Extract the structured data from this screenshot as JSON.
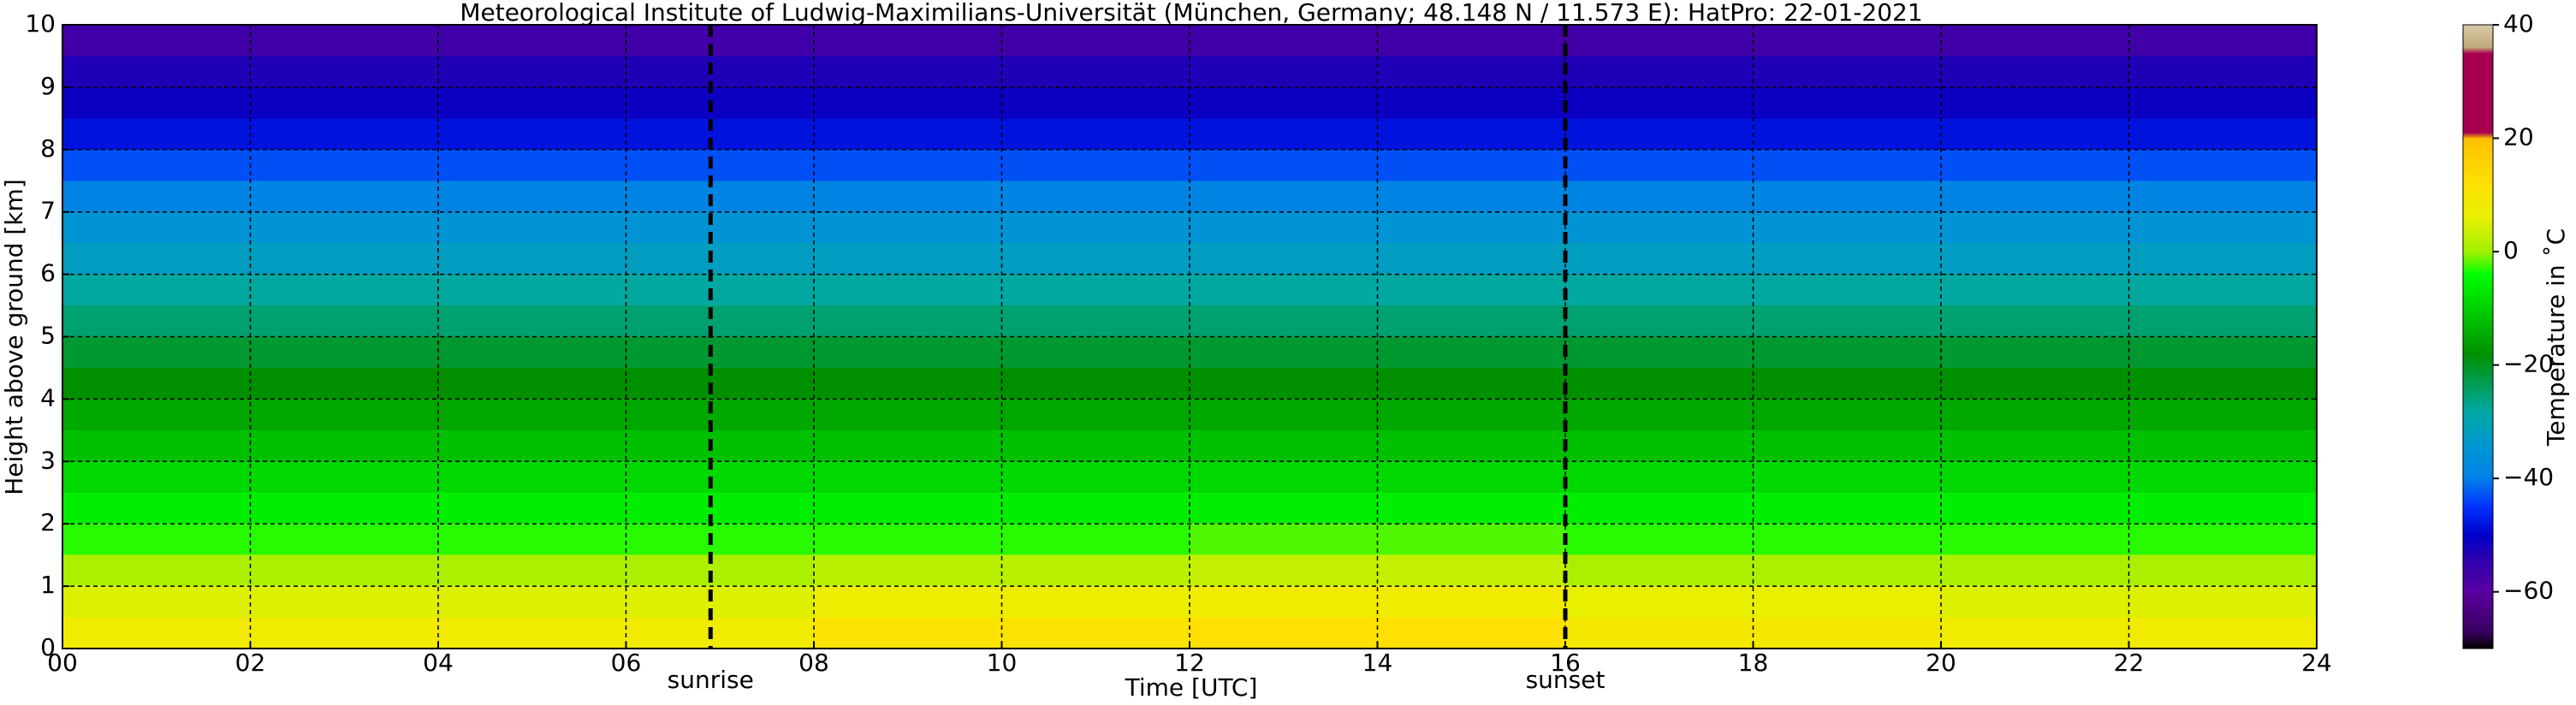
{
  "chart_data": {
    "type": "heatmap",
    "title": "Meteorological Institute of Ludwig-Maximilians-Universität (München, Germany; 48.148 N / 11.573 E):    HatPro: 22-01-2021",
    "x_label": "Time [UTC]",
    "y_label": "Height above ground [km]",
    "colorbar_label": "Temperature in ˚C",
    "x_edges": [
      0,
      4,
      8,
      12,
      16,
      20,
      24
    ],
    "y_edges": [
      0,
      0.5,
      1,
      1.5,
      2,
      2.5,
      3,
      3.5,
      4,
      4.5,
      5,
      5.5,
      6,
      6.5,
      7,
      7.5,
      8,
      8.5,
      9,
      9.5,
      10
    ],
    "values": [
      [
        8,
        8,
        11,
        12,
        9,
        8
      ],
      [
        5,
        5,
        7,
        8,
        6,
        5
      ],
      [
        1,
        1,
        2,
        3,
        1,
        1
      ],
      [
        -3,
        -3,
        -3,
        -2,
        -3,
        -3
      ],
      [
        -6,
        -6,
        -6,
        -6,
        -6,
        -6
      ],
      [
        -9,
        -9,
        -9,
        -9,
        -9,
        -9
      ],
      [
        -12,
        -12,
        -12,
        -12,
        -12,
        -12
      ],
      [
        -15,
        -15,
        -15,
        -15,
        -15,
        -15
      ],
      [
        -18,
        -18,
        -18,
        -18,
        -18,
        -18
      ],
      [
        -21,
        -21,
        -21,
        -21,
        -21,
        -21
      ],
      [
        -25,
        -25,
        -25,
        -25,
        -25,
        -25
      ],
      [
        -28,
        -28,
        -28,
        -28,
        -28,
        -28
      ],
      [
        -32,
        -32,
        -32,
        -32,
        -32,
        -32
      ],
      [
        -35,
        -35,
        -35,
        -35,
        -35,
        -35
      ],
      [
        -39,
        -39,
        -39,
        -39,
        -39,
        -39
      ],
      [
        -43,
        -43,
        -43,
        -43,
        -43,
        -43
      ],
      [
        -48,
        -48,
        -48,
        -48,
        -48,
        -48
      ],
      [
        -51,
        -51,
        -51,
        -51,
        -51,
        -51
      ],
      [
        -53,
        -53,
        -53,
        -53,
        -53,
        -53
      ],
      [
        -57,
        -57,
        -57,
        -57,
        -57,
        -57
      ]
    ],
    "xlim": [
      0,
      24
    ],
    "xticks": [
      {
        "value": 0,
        "label": "00"
      },
      {
        "value": 2,
        "label": "02"
      },
      {
        "value": 4,
        "label": "04"
      },
      {
        "value": 6,
        "label": "06"
      },
      {
        "value": 8,
        "label": "08"
      },
      {
        "value": 10,
        "label": "10"
      },
      {
        "value": 12,
        "label": "12"
      },
      {
        "value": 14,
        "label": "14"
      },
      {
        "value": 16,
        "label": "16"
      },
      {
        "value": 18,
        "label": "18"
      },
      {
        "value": 20,
        "label": "20"
      },
      {
        "value": 22,
        "label": "22"
      },
      {
        "value": 24,
        "label": "24"
      }
    ],
    "ylim": [
      0,
      10
    ],
    "yticks": [
      0,
      1,
      2,
      3,
      4,
      5,
      6,
      7,
      8,
      9,
      10
    ],
    "clim": [
      -70,
      40
    ],
    "cticks": [
      {
        "value": -60,
        "label": "−60"
      },
      {
        "value": -40,
        "label": "−40"
      },
      {
        "value": -20,
        "label": "−20"
      },
      0,
      20,
      40
    ],
    "colorscale": [
      {
        "value": -70,
        "color": "#000000"
      },
      {
        "value": -67,
        "color": "#3a0060"
      },
      {
        "value": -60,
        "color": "#5a00a0"
      },
      {
        "value": -54,
        "color": "#2a00b0"
      },
      {
        "value": -50,
        "color": "#0000c8"
      },
      {
        "value": -45,
        "color": "#0030ff"
      },
      {
        "value": -40,
        "color": "#0080e8"
      },
      {
        "value": -34,
        "color": "#0098d0"
      },
      {
        "value": -28,
        "color": "#00a8a0"
      },
      {
        "value": -22,
        "color": "#009a40"
      },
      {
        "value": -18,
        "color": "#009000"
      },
      {
        "value": -10,
        "color": "#00d000"
      },
      {
        "value": -4,
        "color": "#00ff00"
      },
      {
        "value": 0,
        "color": "#a0f000"
      },
      {
        "value": 6,
        "color": "#e8f000"
      },
      {
        "value": 12,
        "color": "#ffe000"
      },
      {
        "value": 20,
        "color": "#ffc000"
      },
      {
        "value": 21,
        "color": "#a8004f"
      },
      {
        "value": 35,
        "color": "#a8004f"
      },
      {
        "value": 36,
        "color": "#c0a878"
      },
      {
        "value": 40,
        "color": "#d8cca8"
      }
    ],
    "annotations": [
      {
        "x": 6.9,
        "label": "sunrise"
      },
      {
        "x": 16.0,
        "label": "sunset"
      }
    ],
    "grid": true
  }
}
